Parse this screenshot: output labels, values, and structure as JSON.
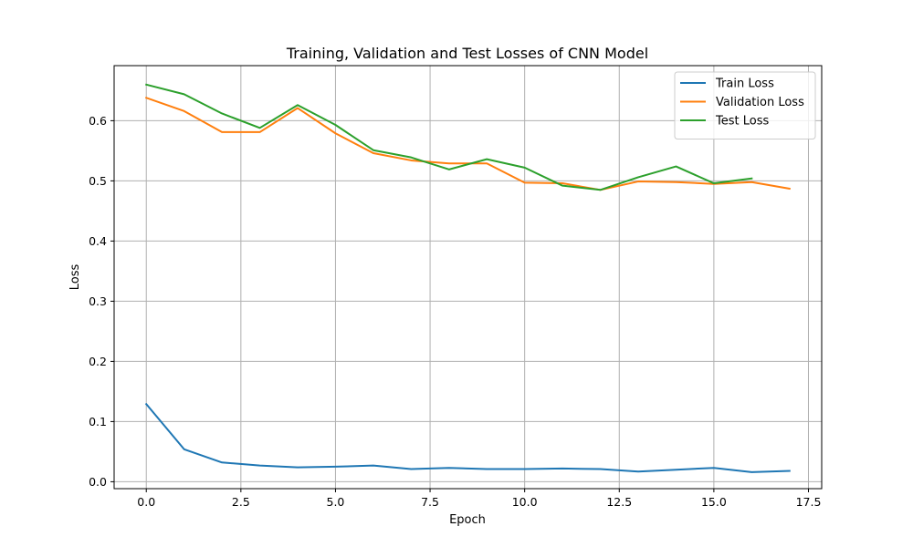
{
  "chart_data": {
    "type": "line",
    "title": "Training, Validation and Test Losses of CNN Model",
    "xlabel": "Epoch",
    "ylabel": "Loss",
    "xlim": [
      -0.85,
      17.85
    ],
    "ylim": [
      -0.0115,
      0.6915
    ],
    "xticks": [
      0.0,
      2.5,
      5.0,
      7.5,
      10.0,
      12.5,
      15.0,
      17.5
    ],
    "xtick_labels": [
      "0.0",
      "2.5",
      "5.0",
      "7.5",
      "10.0",
      "12.5",
      "15.0",
      "17.5"
    ],
    "yticks": [
      0.0,
      0.1,
      0.2,
      0.3,
      0.4,
      0.5,
      0.6
    ],
    "ytick_labels": [
      "0.0",
      "0.1",
      "0.2",
      "0.3",
      "0.4",
      "0.5",
      "0.6"
    ],
    "grid": true,
    "legend_position": "top-right",
    "series": [
      {
        "name": "Train Loss",
        "color": "#1f77b4",
        "x": [
          0,
          1,
          2,
          3,
          4,
          5,
          6,
          7,
          8,
          9,
          10,
          11,
          12,
          13,
          14,
          15,
          16,
          17
        ],
        "y": [
          0.129,
          0.054,
          0.032,
          0.027,
          0.024,
          0.025,
          0.027,
          0.021,
          0.023,
          0.021,
          0.021,
          0.022,
          0.021,
          0.017,
          0.02,
          0.023,
          0.016,
          0.018
        ]
      },
      {
        "name": "Validation Loss",
        "color": "#ff7f0e",
        "x": [
          0,
          1,
          2,
          3,
          4,
          5,
          6,
          7,
          8,
          9,
          10,
          11,
          12,
          13,
          14,
          15,
          16,
          17
        ],
        "y": [
          0.638,
          0.616,
          0.581,
          0.581,
          0.621,
          0.579,
          0.546,
          0.534,
          0.529,
          0.529,
          0.497,
          0.496,
          0.485,
          0.499,
          0.498,
          0.495,
          0.498,
          0.487
        ]
      },
      {
        "name": "Test Loss",
        "color": "#2ca02c",
        "x": [
          0,
          1,
          2,
          3,
          4,
          5,
          6,
          7,
          8,
          9,
          10,
          11,
          12,
          13,
          14,
          15,
          16
        ],
        "y": [
          0.66,
          0.644,
          0.612,
          0.588,
          0.626,
          0.593,
          0.551,
          0.539,
          0.519,
          0.536,
          0.522,
          0.492,
          0.485,
          0.506,
          0.524,
          0.496,
          0.504
        ]
      }
    ]
  }
}
